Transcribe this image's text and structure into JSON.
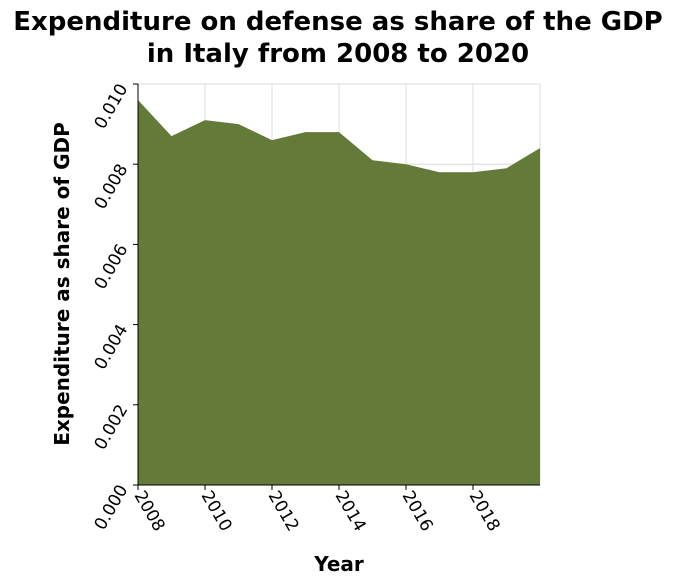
{
  "chart_data": {
    "type": "area",
    "title_lines": [
      "Expenditure on defense as share of the GDP",
      "in Italy from 2008 to 2020"
    ],
    "xlabel": "Year",
    "ylabel": "Expenditure as share of GDP",
    "xlim": [
      2008,
      2020
    ],
    "ylim": [
      0,
      0.01
    ],
    "x_ticks": [
      "2008",
      "2010",
      "2012",
      "2014",
      "2016",
      "2018"
    ],
    "y_ticks": [
      "0.000",
      "0.002",
      "0.004",
      "0.006",
      "0.008",
      "0.010"
    ],
    "grid": true,
    "fill_color": "#647a39",
    "series": [
      {
        "name": "Expenditure on defense as share of GDP",
        "x": [
          2008,
          2009,
          2010,
          2011,
          2012,
          2013,
          2014,
          2015,
          2016,
          2017,
          2018,
          2019,
          2020
        ],
        "values": [
          0.0096,
          0.0087,
          0.0091,
          0.009,
          0.0086,
          0.0088,
          0.0088,
          0.0081,
          0.008,
          0.0078,
          0.0078,
          0.0079,
          0.0084
        ]
      }
    ]
  }
}
